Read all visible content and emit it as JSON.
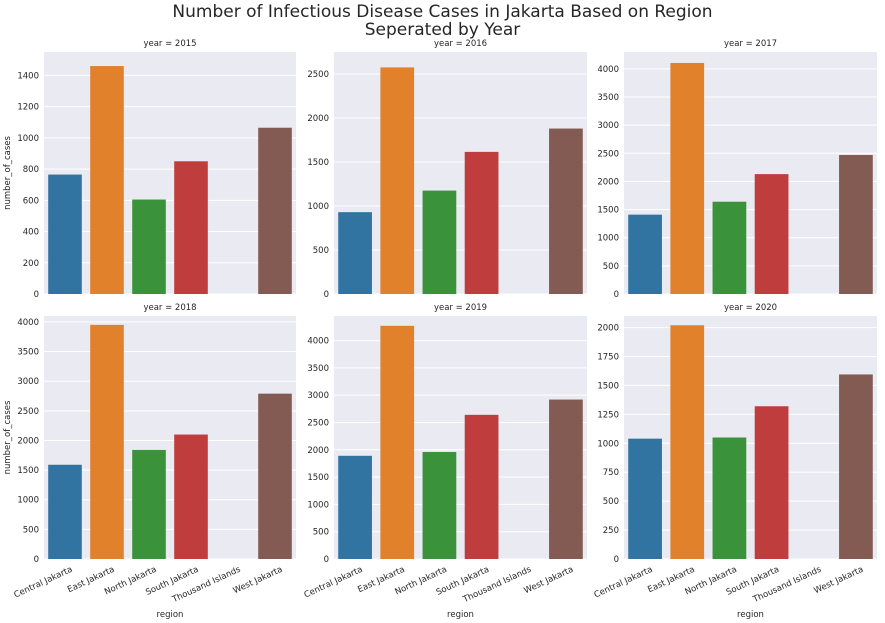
{
  "title_line1": "Number of Infectious Disease Cases in Jakarta Based on Region",
  "title_line2": "Seperated by Year",
  "xlabel": "region",
  "ylabel": "number_of_cases",
  "colors": [
    "#3274a1",
    "#e1812c",
    "#3a923a",
    "#c03d3e",
    "#9372b2",
    "#845b53"
  ],
  "chart_data": [
    {
      "type": "bar",
      "title": "year = 2015",
      "categories": [
        "Central Jakarta",
        "East Jakarta",
        "North Jakarta",
        "South Jakarta",
        "Thousand Islands",
        "West Jakarta"
      ],
      "values": [
        765,
        1460,
        605,
        850,
        0,
        1065
      ],
      "ylim": [
        0,
        1550
      ],
      "yticks": [
        0,
        200,
        400,
        600,
        800,
        1000,
        1200,
        1400
      ],
      "grid": true
    },
    {
      "type": "bar",
      "title": "year = 2016",
      "categories": [
        "Central Jakarta",
        "East Jakarta",
        "North Jakarta",
        "South Jakarta",
        "Thousand Islands",
        "West Jakarta"
      ],
      "values": [
        930,
        2575,
        1175,
        1615,
        0,
        1880
      ],
      "ylim": [
        0,
        2750
      ],
      "yticks": [
        0,
        500,
        1000,
        1500,
        2000,
        2500
      ],
      "grid": true
    },
    {
      "type": "bar",
      "title": "year = 2017",
      "categories": [
        "Central Jakarta",
        "East Jakarta",
        "North Jakarta",
        "South Jakarta",
        "Thousand Islands",
        "West Jakarta"
      ],
      "values": [
        1410,
        4105,
        1640,
        2130,
        0,
        2470
      ],
      "ylim": [
        0,
        4300
      ],
      "yticks": [
        0,
        500,
        1000,
        1500,
        2000,
        2500,
        3000,
        3500,
        4000
      ],
      "grid": true
    },
    {
      "type": "bar",
      "title": "year = 2018",
      "categories": [
        "Central Jakarta",
        "East Jakarta",
        "North Jakarta",
        "South Jakarta",
        "Thousand Islands",
        "West Jakarta"
      ],
      "values": [
        1590,
        3950,
        1840,
        2100,
        0,
        2790
      ],
      "ylim": [
        0,
        4100
      ],
      "yticks": [
        0,
        500,
        1000,
        1500,
        2000,
        2500,
        3000,
        3500,
        4000
      ],
      "grid": true
    },
    {
      "type": "bar",
      "title": "year = 2019",
      "categories": [
        "Central Jakarta",
        "East Jakarta",
        "North Jakarta",
        "South Jakarta",
        "Thousand Islands",
        "West Jakarta"
      ],
      "values": [
        1890,
        4270,
        1960,
        2640,
        0,
        2920
      ],
      "ylim": [
        0,
        4450
      ],
      "yticks": [
        0,
        500,
        1000,
        1500,
        2000,
        2500,
        3000,
        3500,
        4000
      ],
      "grid": true
    },
    {
      "type": "bar",
      "title": "year = 2020",
      "categories": [
        "Central Jakarta",
        "East Jakarta",
        "North Jakarta",
        "South Jakarta",
        "Thousand Islands",
        "West Jakarta"
      ],
      "values": [
        1040,
        2020,
        1050,
        1320,
        0,
        1595
      ],
      "ylim": [
        0,
        2100
      ],
      "yticks": [
        0,
        250,
        500,
        750,
        1000,
        1250,
        1500,
        1750,
        2000
      ],
      "grid": true
    }
  ]
}
